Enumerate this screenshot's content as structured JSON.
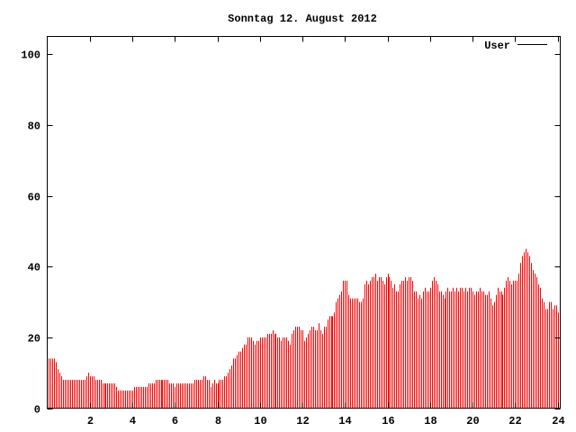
{
  "chart_data": {
    "type": "bar",
    "title": "Sonntag 12. August 2012",
    "xlabel": "",
    "ylabel": "",
    "xlim": [
      0,
      24
    ],
    "ylim": [
      0,
      105
    ],
    "x_ticks": [
      2,
      4,
      6,
      8,
      10,
      12,
      14,
      16,
      18,
      20,
      22,
      24
    ],
    "y_ticks": [
      0,
      20,
      40,
      60,
      80,
      100
    ],
    "grid": false,
    "legend": {
      "position": "top-right",
      "entries": [
        {
          "label": "User",
          "line_color": "#000000"
        }
      ]
    },
    "series": [
      {
        "name": "User",
        "color": "#ff0000",
        "interval_hours": 0.0833,
        "values": [
          14,
          14,
          14,
          14,
          13,
          11,
          10,
          9,
          8,
          8,
          8,
          8,
          8,
          8,
          8,
          8,
          8,
          8,
          8,
          8,
          8,
          9,
          10,
          9,
          9,
          9,
          8,
          8,
          8,
          8,
          7,
          7,
          7,
          7,
          7,
          7,
          7,
          7,
          6,
          5,
          5,
          5,
          5,
          5,
          5,
          5,
          5,
          5,
          6,
          6,
          6,
          6,
          6,
          6,
          6,
          6,
          7,
          7,
          7,
          7,
          8,
          8,
          8,
          8,
          8,
          8,
          8,
          8,
          7,
          7,
          7,
          6,
          7,
          7,
          7,
          7,
          7,
          7,
          7,
          7,
          7,
          7,
          8,
          8,
          8,
          8,
          8,
          9,
          9,
          8,
          8,
          6,
          7,
          8,
          7,
          7,
          8,
          8,
          8,
          9,
          9,
          10,
          11,
          12,
          14,
          14,
          15,
          16,
          16,
          17,
          18,
          18,
          20,
          20,
          20,
          19,
          18,
          19,
          19,
          20,
          20,
          20,
          20,
          21,
          21,
          21,
          22,
          21,
          21,
          20,
          20,
          19,
          20,
          20,
          20,
          19,
          18,
          21,
          22,
          23,
          23,
          23,
          22,
          22,
          19,
          20,
          21,
          22,
          23,
          23,
          22,
          22,
          24,
          22,
          21,
          23,
          23,
          25,
          26,
          26,
          26,
          27,
          30,
          31,
          32,
          33,
          36,
          36,
          36,
          32,
          31,
          31,
          31,
          31,
          31,
          30,
          30,
          31,
          35,
          36,
          35,
          36,
          37,
          37,
          38,
          36,
          37,
          37,
          36,
          35,
          37,
          38,
          37,
          36,
          34,
          35,
          33,
          33,
          35,
          36,
          36,
          37,
          36,
          37,
          37,
          36,
          33,
          33,
          31,
          32,
          31,
          33,
          34,
          33,
          33,
          34,
          36,
          37,
          36,
          35,
          33,
          33,
          32,
          31,
          33,
          34,
          33,
          33,
          34,
          33,
          34,
          33,
          34,
          34,
          33,
          34,
          33,
          34,
          34,
          33,
          32,
          33,
          33,
          34,
          33,
          33,
          32,
          32,
          33,
          31,
          29,
          30,
          32,
          34,
          33,
          33,
          32,
          34,
          36,
          37,
          36,
          35,
          36,
          36,
          36,
          38,
          41,
          43,
          44,
          45,
          44,
          43,
          41,
          39,
          38,
          37,
          35,
          34,
          31,
          30,
          28,
          28,
          30,
          30,
          28,
          29,
          29,
          27
        ]
      }
    ]
  }
}
